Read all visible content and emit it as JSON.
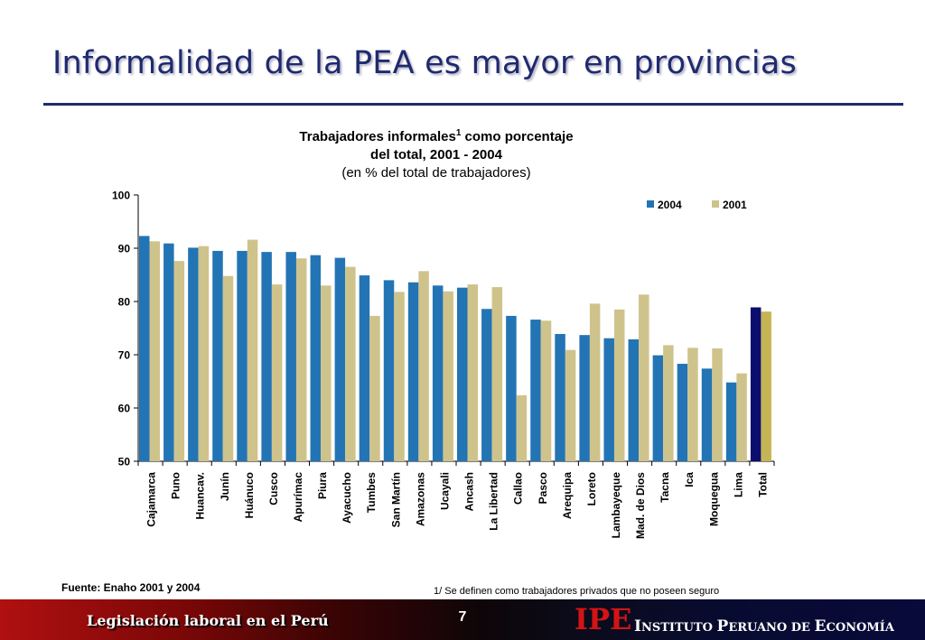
{
  "slide": {
    "title": "Informalidad de la PEA es mayor en provincias",
    "source": "Fuente: Enaho 2001 y 2004",
    "footnote": "1/ Se definen como trabajadores privados que no poseen seguro"
  },
  "footer": {
    "left_text": "Legislación laboral en el Perú",
    "page_number": "7",
    "logo_text": "IPE",
    "institute_parts": [
      "I",
      "NSTITUTO ",
      "P",
      "ERUANO DE ",
      "E",
      "CONOMÍA"
    ]
  },
  "colors": {
    "series_2004": "#2374b4",
    "series_2001": "#cfc38c",
    "total_2004": "#0b0e6e",
    "total_2001": "#c6b554",
    "title": "#1f2a6e"
  },
  "chart_data": {
    "type": "bar",
    "title_main": "Trabajadores informales",
    "title_sup": "1",
    "title_rest": " como porcentaje",
    "title_line2": "del total, 2001 - 2004",
    "subtitle": "(en % del total de trabajadores)",
    "categories": [
      "Cajamarca",
      "Puno",
      "Huancav.",
      "Junín",
      "Huánuco",
      "Cusco",
      "Apurímac",
      "Piura",
      "Ayacucho",
      "Tumbes",
      "San Martín",
      "Amazonas",
      "Ucayali",
      "Ancash",
      "La Libertad",
      "Callao",
      "Pasco",
      "Arequipa",
      "Loreto",
      "Lambayeque",
      "Mad. de Dios",
      "Tacna",
      "Ica",
      "Moquegua",
      "Lima",
      "Total"
    ],
    "series": [
      {
        "name": "2004",
        "values": [
          92.3,
          90.9,
          90.1,
          89.5,
          89.5,
          89.3,
          89.3,
          88.7,
          88.2,
          84.9,
          84.0,
          83.6,
          83.0,
          82.6,
          78.6,
          77.3,
          76.6,
          73.9,
          73.7,
          73.1,
          72.9,
          69.9,
          68.3,
          67.4,
          64.8,
          78.9
        ]
      },
      {
        "name": "2001",
        "values": [
          91.3,
          87.6,
          90.4,
          84.8,
          91.6,
          83.2,
          88.1,
          83.0,
          86.5,
          77.3,
          81.8,
          85.7,
          81.9,
          83.2,
          82.7,
          62.4,
          76.4,
          70.9,
          79.6,
          78.5,
          81.3,
          71.8,
          71.3,
          71.2,
          66.5,
          78.1
        ]
      }
    ],
    "ylim": [
      50,
      100
    ],
    "yticks": [
      50,
      60,
      70,
      80,
      90,
      100
    ],
    "legend": "top-right",
    "grid": false
  }
}
